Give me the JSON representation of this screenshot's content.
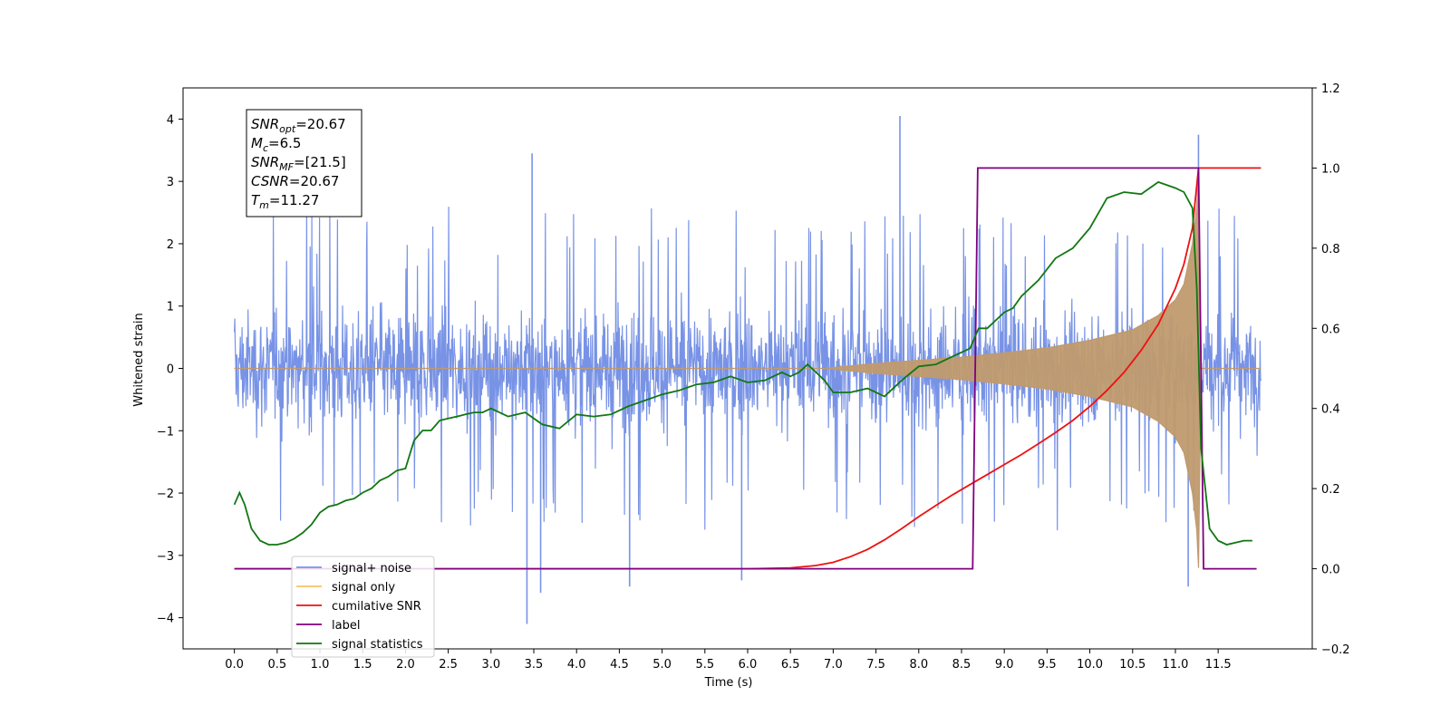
{
  "chart_data": {
    "type": "line",
    "xlabel": "Time (s)",
    "ylabel_left": "Whitened strain",
    "ylabel_right": "",
    "xlim": [
      -0.6,
      12.6
    ],
    "ylim_left": [
      -4.5,
      4.5
    ],
    "ylim_right": [
      -0.2,
      1.2
    ],
    "x_ticks": [
      "0.0",
      "0.5",
      "1.0",
      "1.5",
      "2.0",
      "2.5",
      "3.0",
      "3.5",
      "4.0",
      "4.5",
      "5.0",
      "5.5",
      "6.0",
      "6.5",
      "7.0",
      "7.5",
      "8.0",
      "8.5",
      "9.0",
      "9.5",
      "10.0",
      "10.5",
      "11.0",
      "11.5"
    ],
    "y_ticks_left": [
      "4",
      "3",
      "2",
      "1",
      "0",
      "−1",
      "−2",
      "−3",
      "−4"
    ],
    "y_ticks_right": [
      "1.2",
      "1.0",
      "0.8",
      "0.6",
      "0.4",
      "0.2",
      "0.0",
      "−0.2"
    ],
    "grid": false,
    "legend_position": "lower-left",
    "annotation": {
      "lines": [
        {
          "var": "SNR",
          "sub": "opt",
          "value": "=20.67"
        },
        {
          "var": "M",
          "sub": "c",
          "value": "=6.5"
        },
        {
          "var": "SNR",
          "sub": "MF",
          "value": "=[21.5]"
        },
        {
          "var": "CSNR",
          "sub": "",
          "value": "=20.67"
        },
        {
          "var": "T",
          "sub": "m",
          "value": "=11.27"
        }
      ]
    },
    "series": [
      {
        "name": "signal+ noise",
        "axis": "left",
        "color": "#7893e6",
        "description_envelope": {
          "noise_band_upper": 1.1,
          "noise_band_lower": -1.1,
          "typical_peak_max": 2.6,
          "typical_peak_min": -2.2,
          "notable_peaks": [
            {
              "x": 7.78,
              "y": 4.05
            },
            {
              "x": 3.48,
              "y": 3.45
            },
            {
              "x": 11.27,
              "y": 3.75
            },
            {
              "x": 3.42,
              "y": -4.1
            },
            {
              "x": 3.58,
              "y": -3.6
            },
            {
              "x": 11.15,
              "y": -3.5
            },
            {
              "x": 4.62,
              "y": -3.5
            },
            {
              "x": 5.93,
              "y": -3.4
            }
          ],
          "x_range": [
            0.0,
            12.0
          ]
        }
      },
      {
        "name": "signal only",
        "axis": "left",
        "color": "#c09a6e",
        "envelope": [
          [
            0.0,
            0.0
          ],
          [
            6.9,
            0.0
          ],
          [
            7.5,
            0.08
          ],
          [
            8.0,
            0.13
          ],
          [
            8.5,
            0.18
          ],
          [
            9.0,
            0.25
          ],
          [
            9.5,
            0.33
          ],
          [
            10.0,
            0.45
          ],
          [
            10.5,
            0.62
          ],
          [
            10.8,
            0.85
          ],
          [
            11.0,
            1.1
          ],
          [
            11.1,
            1.35
          ],
          [
            11.2,
            2.0
          ],
          [
            11.25,
            2.6
          ],
          [
            11.27,
            3.2
          ],
          [
            11.3,
            0.0
          ],
          [
            12.0,
            0.0
          ]
        ]
      },
      {
        "name": "cumilative SNR",
        "axis": "right",
        "color": "#ee1111",
        "x": [
          0.0,
          6.0,
          6.5,
          6.8,
          7.0,
          7.2,
          7.4,
          7.6,
          7.8,
          8.0,
          8.2,
          8.4,
          8.6,
          8.8,
          9.0,
          9.2,
          9.4,
          9.6,
          9.8,
          10.0,
          10.2,
          10.4,
          10.6,
          10.8,
          11.0,
          11.1,
          11.2,
          11.27,
          11.3,
          12.0
        ],
        "values": [
          0.0,
          0.0,
          0.002,
          0.008,
          0.016,
          0.03,
          0.048,
          0.072,
          0.1,
          0.13,
          0.158,
          0.185,
          0.21,
          0.235,
          0.26,
          0.285,
          0.312,
          0.34,
          0.37,
          0.405,
          0.445,
          0.49,
          0.545,
          0.61,
          0.7,
          0.76,
          0.85,
          1.0,
          1.0,
          1.0
        ]
      },
      {
        "name": "label",
        "axis": "right",
        "color": "#800080",
        "x": [
          0.0,
          8.63,
          8.69,
          11.27,
          11.33,
          11.95
        ],
        "values": [
          0.0,
          0.0,
          1.0,
          1.0,
          0.0,
          0.0
        ]
      },
      {
        "name": "signal statistics",
        "axis": "right",
        "color": "#117711",
        "x": [
          0.0,
          0.06,
          0.12,
          0.2,
          0.3,
          0.4,
          0.5,
          0.6,
          0.7,
          0.8,
          0.9,
          1.0,
          1.1,
          1.2,
          1.3,
          1.4,
          1.5,
          1.6,
          1.7,
          1.8,
          1.9,
          2.0,
          2.1,
          2.2,
          2.3,
          2.4,
          2.5,
          2.6,
          2.7,
          2.8,
          2.9,
          3.0,
          3.2,
          3.4,
          3.6,
          3.8,
          4.0,
          4.2,
          4.4,
          4.6,
          4.8,
          5.0,
          5.2,
          5.4,
          5.6,
          5.8,
          6.0,
          6.2,
          6.4,
          6.5,
          6.6,
          6.7,
          6.8,
          6.9,
          7.0,
          7.2,
          7.4,
          7.6,
          7.8,
          8.0,
          8.2,
          8.4,
          8.6,
          8.7,
          8.8,
          9.0,
          9.1,
          9.2,
          9.4,
          9.6,
          9.8,
          10.0,
          10.2,
          10.4,
          10.6,
          10.8,
          11.0,
          11.1,
          11.2,
          11.25,
          11.3,
          11.4,
          11.5,
          11.6,
          11.8,
          11.9
        ],
        "values": [
          0.16,
          0.19,
          0.16,
          0.1,
          0.07,
          0.06,
          0.06,
          0.065,
          0.075,
          0.09,
          0.11,
          0.14,
          0.155,
          0.16,
          0.17,
          0.175,
          0.19,
          0.2,
          0.22,
          0.23,
          0.245,
          0.25,
          0.32,
          0.345,
          0.345,
          0.37,
          0.375,
          0.38,
          0.385,
          0.39,
          0.39,
          0.4,
          0.38,
          0.39,
          0.36,
          0.35,
          0.385,
          0.38,
          0.385,
          0.405,
          0.42,
          0.435,
          0.445,
          0.46,
          0.465,
          0.48,
          0.465,
          0.47,
          0.49,
          0.48,
          0.49,
          0.51,
          0.49,
          0.47,
          0.44,
          0.44,
          0.45,
          0.43,
          0.47,
          0.505,
          0.51,
          0.53,
          0.55,
          0.6,
          0.6,
          0.64,
          0.65,
          0.68,
          0.72,
          0.775,
          0.8,
          0.85,
          0.925,
          0.94,
          0.935,
          0.965,
          0.95,
          0.94,
          0.9,
          0.7,
          0.3,
          0.1,
          0.07,
          0.06,
          0.07,
          0.07
        ]
      }
    ]
  },
  "legend": {
    "items": [
      {
        "label": "signal+ noise",
        "color": "#7893e6"
      },
      {
        "label": "signal only",
        "color": "#f7c26a"
      },
      {
        "label": "cumilative SNR",
        "color": "#ee1111"
      },
      {
        "label": "label",
        "color": "#800080"
      },
      {
        "label": "signal statistics",
        "color": "#117711"
      }
    ]
  }
}
